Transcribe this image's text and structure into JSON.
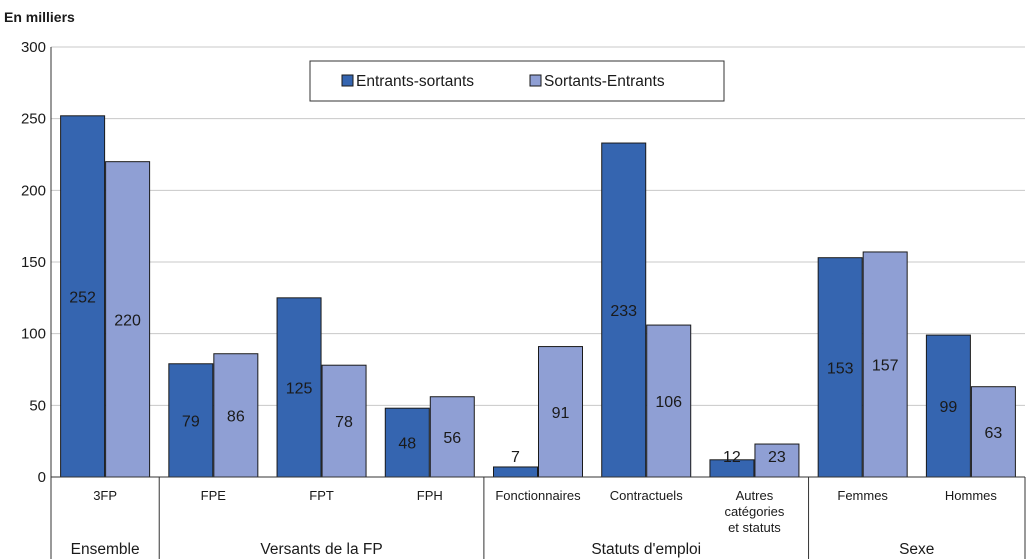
{
  "chart_data": {
    "type": "bar",
    "unit_label": "En milliers",
    "ylim": [
      0,
      300
    ],
    "yticks": [
      0,
      50,
      100,
      150,
      200,
      250,
      300
    ],
    "grid": true,
    "legend_position": "top-center",
    "colors": {
      "Entrants-sortants": "#3565b0",
      "Sortants-Entrants": "#8f9fd4"
    },
    "categories": [
      {
        "lines": [
          "3FP"
        ]
      },
      {
        "lines": [
          "FPE"
        ]
      },
      {
        "lines": [
          "FPT"
        ]
      },
      {
        "lines": [
          "FPH"
        ]
      },
      {
        "lines": [
          "Fonctionnaires"
        ]
      },
      {
        "lines": [
          "Contractuels"
        ]
      },
      {
        "lines": [
          "Autres",
          "catégories",
          "et statuts"
        ]
      },
      {
        "lines": [
          "Femmes"
        ]
      },
      {
        "lines": [
          "Hommes"
        ]
      }
    ],
    "groups": [
      {
        "label": "Ensemble",
        "count": 1
      },
      {
        "label": "Versants de la FP",
        "count": 3
      },
      {
        "label": "Statuts d'emploi",
        "count": 3
      },
      {
        "label": "Sexe",
        "count": 2
      }
    ],
    "series": [
      {
        "name": "Entrants-sortants",
        "values": [
          252,
          79,
          125,
          48,
          7,
          233,
          12,
          153,
          99
        ]
      },
      {
        "name": "Sortants-Entrants",
        "values": [
          220,
          86,
          78,
          56,
          91,
          106,
          23,
          157,
          63
        ]
      }
    ]
  }
}
